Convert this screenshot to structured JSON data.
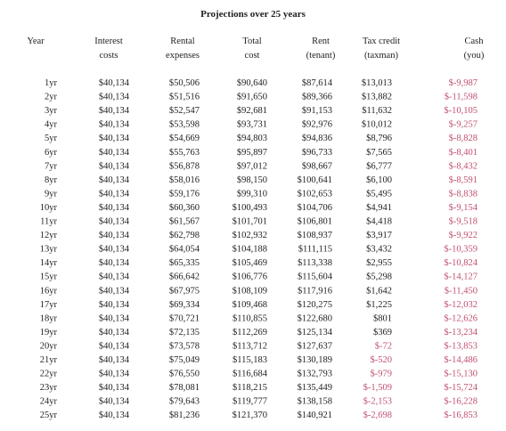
{
  "title": "Projections over 25 years",
  "negative_color": "#c0506e",
  "table": {
    "headers": [
      [
        "Year"
      ],
      [
        "Interest",
        "costs"
      ],
      [
        "Rental",
        "expenses"
      ],
      [
        "Total",
        "cost"
      ],
      [
        "Rent",
        "(tenant)"
      ],
      [
        "Tax credit",
        "(taxman)"
      ],
      [
        "Cash",
        "(you)"
      ]
    ],
    "rows": [
      [
        "1yr",
        "$40,134",
        "$50,506",
        "$90,640",
        "$87,614",
        "$13,013",
        "$-9,987"
      ],
      [
        "2yr",
        "$40,134",
        "$51,516",
        "$91,650",
        "$89,366",
        "$13,882",
        "$-11,598"
      ],
      [
        "3yr",
        "$40,134",
        "$52,547",
        "$92,681",
        "$91,153",
        "$11,632",
        "$-10,105"
      ],
      [
        "4yr",
        "$40,134",
        "$53,598",
        "$93,731",
        "$92,976",
        "$10,012",
        "$-9,257"
      ],
      [
        "5yr",
        "$40,134",
        "$54,669",
        "$94,803",
        "$94,836",
        "$8,796",
        "$-8,828"
      ],
      [
        "6yr",
        "$40,134",
        "$55,763",
        "$95,897",
        "$96,733",
        "$7,565",
        "$-8,401"
      ],
      [
        "7yr",
        "$40,134",
        "$56,878",
        "$97,012",
        "$98,667",
        "$6,777",
        "$-8,432"
      ],
      [
        "8yr",
        "$40,134",
        "$58,016",
        "$98,150",
        "$100,641",
        "$6,100",
        "$-8,591"
      ],
      [
        "9yr",
        "$40,134",
        "$59,176",
        "$99,310",
        "$102,653",
        "$5,495",
        "$-8,838"
      ],
      [
        "10yr",
        "$40,134",
        "$60,360",
        "$100,493",
        "$104,706",
        "$4,941",
        "$-9,154"
      ],
      [
        "11yr",
        "$40,134",
        "$61,567",
        "$101,701",
        "$106,801",
        "$4,418",
        "$-9,518"
      ],
      [
        "12yr",
        "$40,134",
        "$62,798",
        "$102,932",
        "$108,937",
        "$3,917",
        "$-9,922"
      ],
      [
        "13yr",
        "$40,134",
        "$64,054",
        "$104,188",
        "$111,115",
        "$3,432",
        "$-10,359"
      ],
      [
        "14yr",
        "$40,134",
        "$65,335",
        "$105,469",
        "$113,338",
        "$2,955",
        "$-10,824"
      ],
      [
        "15yr",
        "$40,134",
        "$66,642",
        "$106,776",
        "$115,604",
        "$5,298",
        "$-14,127"
      ],
      [
        "16yr",
        "$40,134",
        "$67,975",
        "$108,109",
        "$117,916",
        "$1,642",
        "$-11,450"
      ],
      [
        "17yr",
        "$40,134",
        "$69,334",
        "$109,468",
        "$120,275",
        "$1,225",
        "$-12,032"
      ],
      [
        "18yr",
        "$40,134",
        "$70,721",
        "$110,855",
        "$122,680",
        "$801",
        "$-12,626"
      ],
      [
        "19yr",
        "$40,134",
        "$72,135",
        "$112,269",
        "$125,134",
        "$369",
        "$-13,234"
      ],
      [
        "20yr",
        "$40,134",
        "$73,578",
        "$113,712",
        "$127,637",
        "$-72",
        "$-13,853"
      ],
      [
        "21yr",
        "$40,134",
        "$75,049",
        "$115,183",
        "$130,189",
        "$-520",
        "$-14,486"
      ],
      [
        "22yr",
        "$40,134",
        "$76,550",
        "$116,684",
        "$132,793",
        "$-979",
        "$-15,130"
      ],
      [
        "23yr",
        "$40,134",
        "$78,081",
        "$118,215",
        "$135,449",
        "$-1,509",
        "$-15,724"
      ],
      [
        "24yr",
        "$40,134",
        "$79,643",
        "$119,777",
        "$138,158",
        "$-2,153",
        "$-16,228"
      ],
      [
        "25yr",
        "$40,134",
        "$81,236",
        "$121,370",
        "$140,921",
        "$-2,698",
        "$-16,853"
      ]
    ]
  }
}
